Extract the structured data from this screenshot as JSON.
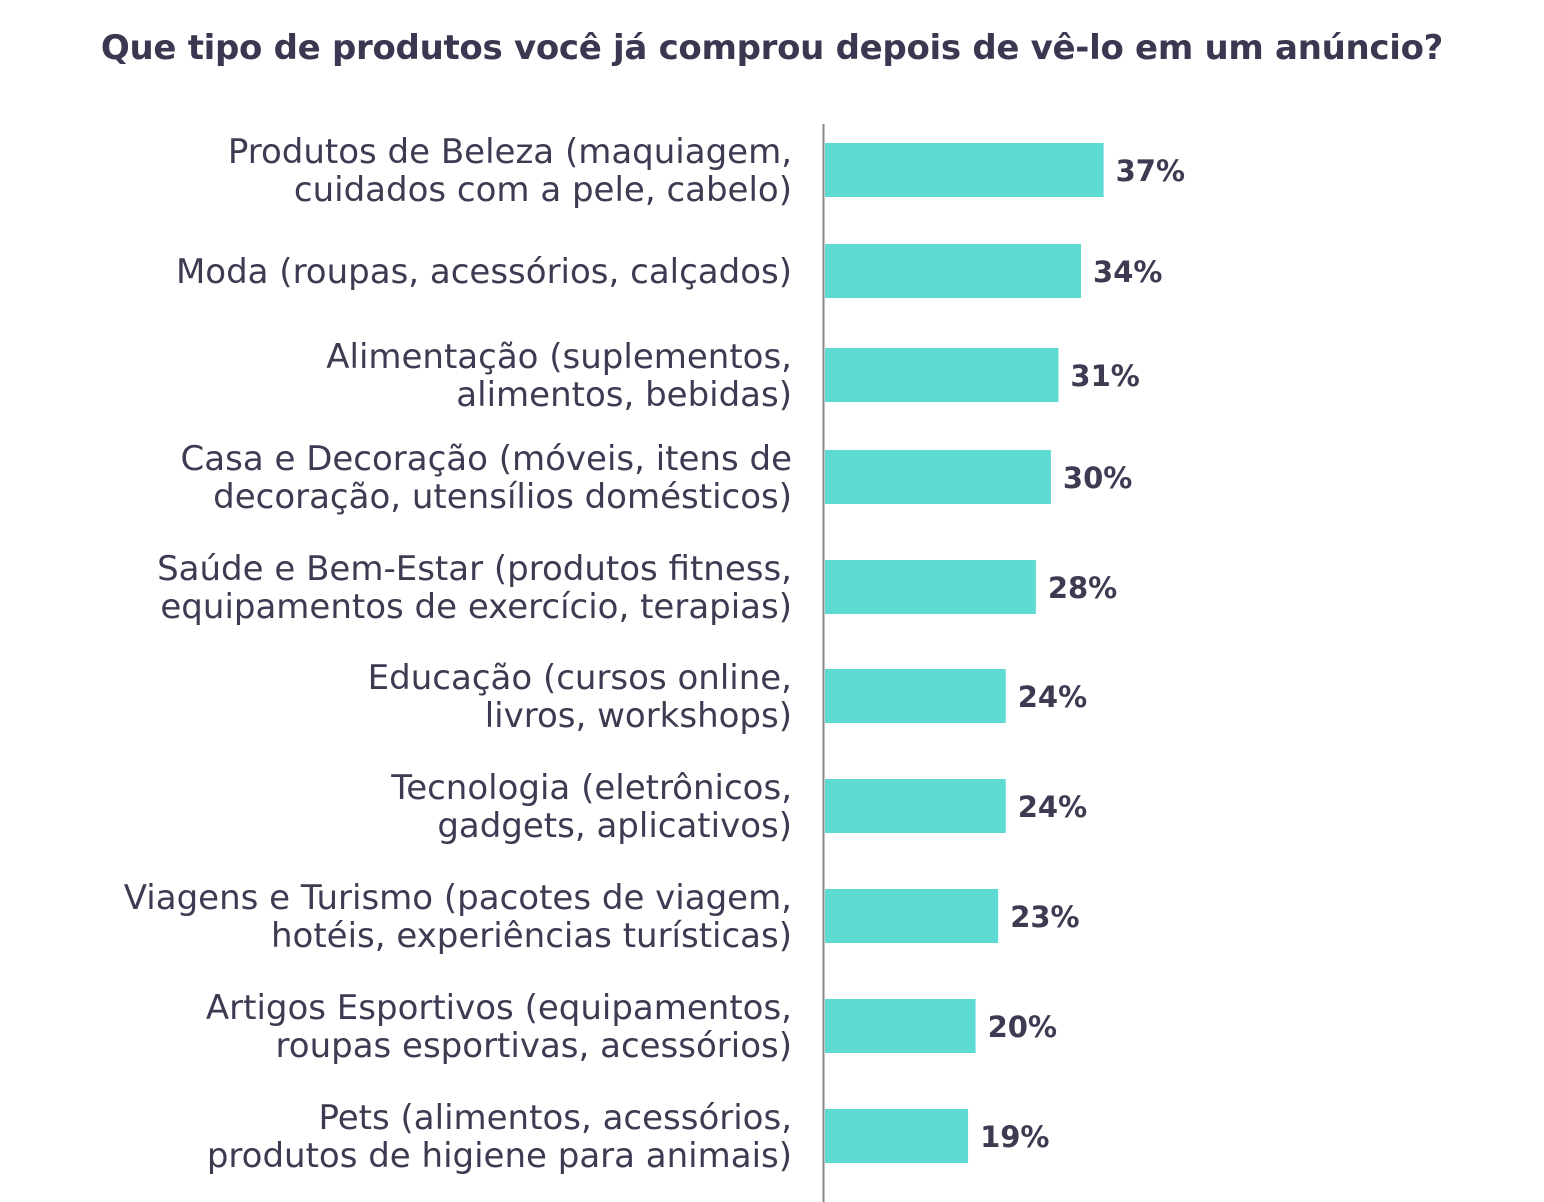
{
  "chart_data": {
    "type": "bar",
    "orientation": "horizontal",
    "title": "Que tipo de produtos você já comprou depois de vê-lo em um anúncio?",
    "categories": [
      [
        "Produtos de Beleza (maquiagem,",
        "cuidados com a pele, cabelo)"
      ],
      [
        "Moda (roupas, acessórios, calçados)"
      ],
      [
        "Alimentação (suplementos,",
        "alimentos, bebidas)"
      ],
      [
        "Casa e Decoração (móveis, itens de",
        "decoração, utensílios domésticos)"
      ],
      [
        "Saúde e Bem-Estar (produtos fitness,",
        "equipamentos de exercício, terapias)"
      ],
      [
        "Educação (cursos online,",
        "livros, workshops)"
      ],
      [
        "Tecnologia (eletrônicos,",
        "gadgets, aplicativos)"
      ],
      [
        "Viagens e Turismo (pacotes de viagem,",
        "hotéis, experiências turísticas)"
      ],
      [
        "Artigos Esportivos (equipamentos,",
        "roupas esportivas, acessórios)"
      ],
      [
        "Pets (alimentos, acessórios,",
        "produtos de higiene para animais)"
      ]
    ],
    "values": [
      37,
      34,
      31,
      30,
      28,
      24,
      24,
      23,
      20,
      19
    ],
    "value_labels": [
      "37%",
      "34%",
      "31%",
      "30%",
      "28%",
      "24%",
      "24%",
      "23%",
      "20%",
      "19%"
    ],
    "unit": "%",
    "xlim": [
      0,
      100
    ],
    "grid": false,
    "legend": "none",
    "bar_color": "#5ddbd3",
    "axis_color": "#888888",
    "text_color": "#3d3b52"
  }
}
